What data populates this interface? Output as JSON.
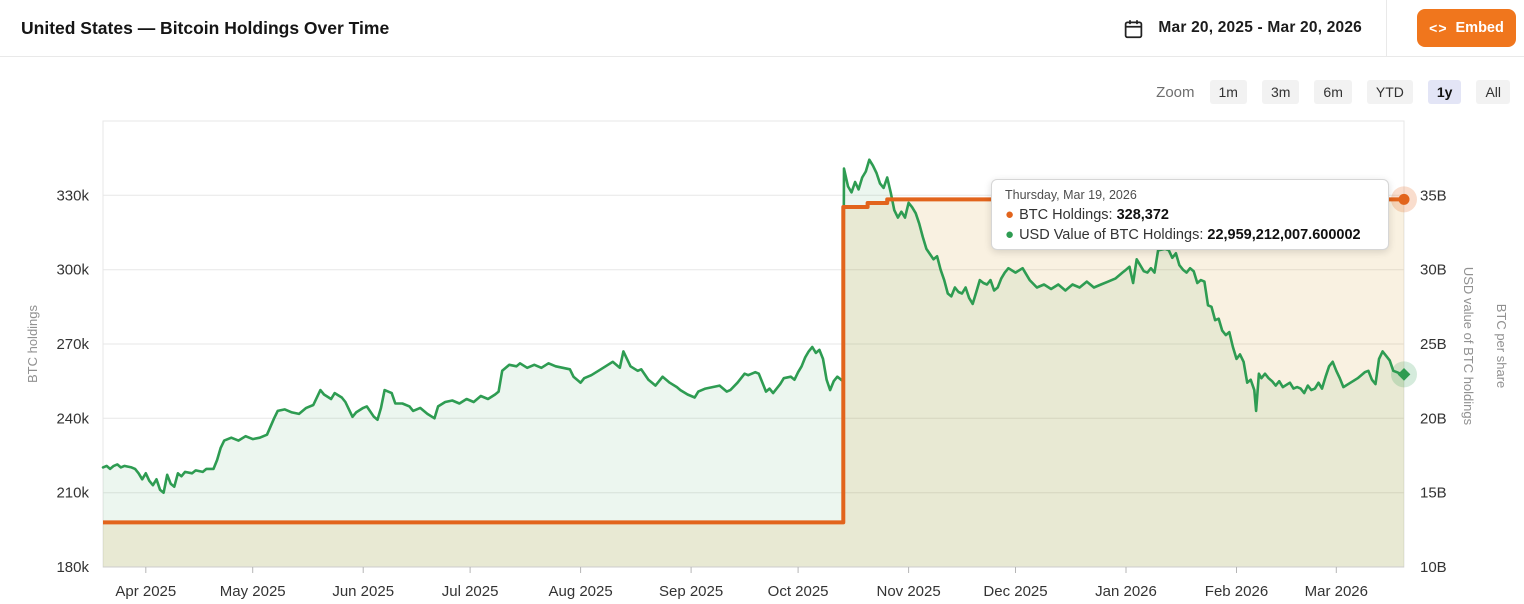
{
  "header": {
    "title": "United States — Bitcoin Holdings Over Time",
    "date_range": "Mar 20, 2025 - Mar 20, 2026",
    "embed_icon": "<>",
    "embed_label": "Embed"
  },
  "toolbar": {
    "zoom_label": "Zoom",
    "buttons": [
      "1m",
      "3m",
      "6m",
      "YTD",
      "1y",
      "All"
    ],
    "selected": "1y"
  },
  "tooltip": {
    "date": "Thursday, Mar 19, 2026",
    "rows": [
      {
        "label": "BTC Holdings: ",
        "value": "328,372",
        "color": "#e2641c"
      },
      {
        "label": "USD Value of BTC Holdings: ",
        "value": "22,959,212,007.600002",
        "color": "#2e9c52"
      }
    ]
  },
  "colors": {
    "accent_orange": "#f0761d",
    "series_btc": "#e2641c",
    "series_usd": "#2e9c52",
    "grid": "#e7e7e7",
    "axis_line": "#cccccc",
    "tick_label": "#333333",
    "axis_title": "#919191",
    "selected_zoom_bg": "#e3e5f6"
  },
  "chart_data": {
    "type": "line",
    "title": "United States — Bitcoin Holdings Over Time",
    "grid": true,
    "legend_position": "none",
    "x_axis": {
      "unit": "days since 2025-03-20",
      "span_days": 365,
      "tick_days": [
        12,
        42,
        73,
        103,
        134,
        165,
        195,
        226,
        256,
        287,
        318,
        346
      ],
      "tick_labels": [
        "Apr 2025",
        "May 2025",
        "Jun 2025",
        "Jul 2025",
        "Aug 2025",
        "Sep 2025",
        "Oct 2025",
        "Nov 2025",
        "Dec 2025",
        "Jan 2026",
        "Feb 2026",
        "Mar 2026"
      ]
    },
    "y_axis_left": {
      "title": "BTC holdings",
      "range": [
        180000,
        360000
      ],
      "tick_values": [
        180000,
        210000,
        240000,
        270000,
        300000,
        330000
      ],
      "tick_labels": [
        "180k",
        "210k",
        "240k",
        "270k",
        "300k",
        "330k"
      ]
    },
    "y_axis_right": {
      "titles": [
        "USD value of BTC holdings",
        "BTC per share"
      ],
      "range": [
        10,
        40
      ],
      "tick_values": [
        10,
        15,
        20,
        25,
        30,
        35
      ],
      "tick_labels": [
        "10B",
        "15B",
        "20B",
        "25B",
        "30B",
        "35B"
      ]
    },
    "series": [
      {
        "name": "BTC Holdings",
        "axis": "left",
        "style": "step",
        "color": "#e2641c",
        "last_point": {
          "date": "Thursday, Mar 19, 2026",
          "value": 328372
        },
        "points": [
          [
            0,
            198012
          ],
          [
            207.6,
            198012
          ],
          [
            207.7,
            325283
          ],
          [
            213.5,
            325283
          ],
          [
            214.5,
            326900
          ],
          [
            219,
            326900
          ],
          [
            220,
            328372
          ],
          [
            365,
            328372
          ]
        ]
      },
      {
        "name": "USD Value of BTC Holdings",
        "axis": "right",
        "style": "line",
        "color": "#2e9c52",
        "unit": "billions USD",
        "last_point": {
          "date": "Thursday, Mar 19, 2026",
          "value": 22.9592120076
        },
        "points": [
          [
            0,
            16.7
          ],
          [
            1,
            16.8
          ],
          [
            2,
            16.6
          ],
          [
            3,
            16.8
          ],
          [
            4,
            16.9
          ],
          [
            5,
            16.7
          ],
          [
            6,
            16.8
          ],
          [
            8,
            16.7
          ],
          [
            9,
            16.6
          ],
          [
            10,
            16.3
          ],
          [
            11,
            15.9
          ],
          [
            12,
            16.3
          ],
          [
            13,
            15.8
          ],
          [
            14,
            15.5
          ],
          [
            15,
            15.9
          ],
          [
            16,
            15.2
          ],
          [
            17,
            15.0
          ],
          [
            18,
            16.2
          ],
          [
            19,
            15.6
          ],
          [
            20,
            15.4
          ],
          [
            21,
            16.3
          ],
          [
            22,
            16.1
          ],
          [
            23,
            16.4
          ],
          [
            25,
            16.3
          ],
          [
            26,
            16.5
          ],
          [
            28,
            16.4
          ],
          [
            29,
            16.6
          ],
          [
            31,
            16.6
          ],
          [
            32,
            17.2
          ],
          [
            33,
            18.0
          ],
          [
            34,
            18.5
          ],
          [
            36,
            18.7
          ],
          [
            38,
            18.5
          ],
          [
            40,
            18.8
          ],
          [
            42,
            18.6
          ],
          [
            44,
            18.7
          ],
          [
            46,
            18.9
          ],
          [
            48,
            20.0
          ],
          [
            49,
            20.5
          ],
          [
            51,
            20.6
          ],
          [
            53,
            20.4
          ],
          [
            55,
            20.3
          ],
          [
            57,
            20.7
          ],
          [
            59,
            20.9
          ],
          [
            61,
            21.9
          ],
          [
            62,
            21.6
          ],
          [
            64,
            21.3
          ],
          [
            65,
            21.7
          ],
          [
            67,
            21.4
          ],
          [
            68,
            21.1
          ],
          [
            70,
            20.1
          ],
          [
            71,
            20.4
          ],
          [
            73,
            20.7
          ],
          [
            74,
            20.8
          ],
          [
            76,
            20.1
          ],
          [
            77,
            19.9
          ],
          [
            78,
            20.7
          ],
          [
            79,
            21.9
          ],
          [
            81,
            21.7
          ],
          [
            82,
            21.0
          ],
          [
            84,
            21.0
          ],
          [
            86,
            20.8
          ],
          [
            87,
            20.5
          ],
          [
            89,
            20.7
          ],
          [
            91,
            20.3
          ],
          [
            93,
            20.0
          ],
          [
            94,
            20.8
          ],
          [
            96,
            21.1
          ],
          [
            98,
            21.2
          ],
          [
            100,
            21.0
          ],
          [
            102,
            21.3
          ],
          [
            104,
            21.1
          ],
          [
            106,
            21.5
          ],
          [
            108,
            21.3
          ],
          [
            110,
            21.6
          ],
          [
            111,
            21.8
          ],
          [
            112,
            23.2
          ],
          [
            114,
            23.6
          ],
          [
            116,
            23.5
          ],
          [
            117,
            23.7
          ],
          [
            119,
            23.4
          ],
          [
            121,
            23.6
          ],
          [
            123,
            23.4
          ],
          [
            125,
            23.7
          ],
          [
            127,
            23.5
          ],
          [
            129,
            23.4
          ],
          [
            131,
            23.3
          ],
          [
            132,
            22.8
          ],
          [
            134,
            22.4
          ],
          [
            135,
            22.7
          ],
          [
            137,
            22.9
          ],
          [
            139,
            23.2
          ],
          [
            141,
            23.5
          ],
          [
            143,
            23.8
          ],
          [
            145,
            23.4
          ],
          [
            146,
            24.5
          ],
          [
            148,
            23.5
          ],
          [
            150,
            23.2
          ],
          [
            151,
            23.3
          ],
          [
            153,
            22.6
          ],
          [
            155,
            22.2
          ],
          [
            157,
            22.8
          ],
          [
            159,
            22.4
          ],
          [
            161,
            22.1
          ],
          [
            162,
            21.9
          ],
          [
            164,
            21.6
          ],
          [
            166,
            21.4
          ],
          [
            167,
            21.8
          ],
          [
            169,
            22.0
          ],
          [
            171,
            22.1
          ],
          [
            173,
            22.2
          ],
          [
            175,
            21.8
          ],
          [
            176,
            21.9
          ],
          [
            178,
            22.4
          ],
          [
            180,
            23.0
          ],
          [
            181,
            22.9
          ],
          [
            183,
            23.1
          ],
          [
            184,
            23.0
          ],
          [
            186,
            21.8
          ],
          [
            187,
            22.0
          ],
          [
            188,
            21.7
          ],
          [
            190,
            22.3
          ],
          [
            191,
            22.7
          ],
          [
            193,
            22.8
          ],
          [
            194,
            22.6
          ],
          [
            195,
            23.1
          ],
          [
            196,
            23.5
          ],
          [
            197,
            24.1
          ],
          [
            198,
            24.5
          ],
          [
            199,
            24.8
          ],
          [
            200,
            24.4
          ],
          [
            201,
            24.6
          ],
          [
            202,
            24.0
          ],
          [
            203,
            22.6
          ],
          [
            204,
            21.9
          ],
          [
            205,
            22.5
          ],
          [
            206,
            22.8
          ],
          [
            207.6,
            22.5
          ],
          [
            207.9,
            36.8
          ],
          [
            209,
            35.6
          ],
          [
            210,
            35.2
          ],
          [
            211,
            35.9
          ],
          [
            212,
            35.4
          ],
          [
            213,
            36.2
          ],
          [
            214,
            36.6
          ],
          [
            215,
            37.4
          ],
          [
            216,
            37.0
          ],
          [
            217,
            36.5
          ],
          [
            218,
            35.8
          ],
          [
            219,
            35.5
          ],
          [
            220,
            36.2
          ],
          [
            221,
            35.2
          ],
          [
            222,
            34.0
          ],
          [
            223,
            33.5
          ],
          [
            224,
            33.9
          ],
          [
            225,
            33.5
          ],
          [
            226,
            34.5
          ],
          [
            227,
            34.2
          ],
          [
            228,
            33.8
          ],
          [
            229,
            33.1
          ],
          [
            230,
            32.2
          ],
          [
            231,
            31.4
          ],
          [
            233,
            30.7
          ],
          [
            234,
            30.9
          ],
          [
            235,
            30.0
          ],
          [
            236,
            29.3
          ],
          [
            237,
            28.4
          ],
          [
            238,
            28.2
          ],
          [
            239,
            28.8
          ],
          [
            240,
            28.5
          ],
          [
            241,
            28.4
          ],
          [
            242,
            28.8
          ],
          [
            243,
            28.1
          ],
          [
            244,
            27.7
          ],
          [
            245,
            28.5
          ],
          [
            246,
            29.3
          ],
          [
            247,
            29.1
          ],
          [
            248,
            29.0
          ],
          [
            249,
            29.3
          ],
          [
            250,
            28.6
          ],
          [
            251,
            28.8
          ],
          [
            252,
            29.4
          ],
          [
            253,
            29.8
          ],
          [
            254,
            30.1
          ],
          [
            256,
            29.8
          ],
          [
            258,
            30.1
          ],
          [
            260,
            29.3
          ],
          [
            262,
            28.8
          ],
          [
            264,
            29.0
          ],
          [
            266,
            28.7
          ],
          [
            268,
            29.0
          ],
          [
            270,
            28.6
          ],
          [
            272,
            29.0
          ],
          [
            274,
            28.8
          ],
          [
            276,
            29.2
          ],
          [
            278,
            28.8
          ],
          [
            280,
            29.0
          ],
          [
            282,
            29.2
          ],
          [
            284,
            29.4
          ],
          [
            286,
            29.8
          ],
          [
            287,
            30.0
          ],
          [
            288,
            30.2
          ],
          [
            289,
            29.1
          ],
          [
            290,
            30.7
          ],
          [
            291,
            30.3
          ],
          [
            292,
            29.9
          ],
          [
            293,
            29.8
          ],
          [
            294,
            30.1
          ],
          [
            295,
            29.8
          ],
          [
            296,
            31.3
          ],
          [
            298,
            31.4
          ],
          [
            299,
            31.3
          ],
          [
            300,
            30.8
          ],
          [
            301,
            31.1
          ],
          [
            302,
            30.3
          ],
          [
            303,
            30.0
          ],
          [
            304,
            29.8
          ],
          [
            305,
            30.1
          ],
          [
            306,
            29.9
          ],
          [
            307,
            29.1
          ],
          [
            308,
            29.3
          ],
          [
            309,
            29.2
          ],
          [
            310,
            27.6
          ],
          [
            311,
            27.5
          ],
          [
            312,
            26.6
          ],
          [
            313,
            26.7
          ],
          [
            314,
            25.9
          ],
          [
            315,
            25.6
          ],
          [
            316,
            25.8
          ],
          [
            317,
            24.8
          ],
          [
            318,
            24.0
          ],
          [
            319,
            24.3
          ],
          [
            320,
            23.8
          ],
          [
            321,
            22.4
          ],
          [
            322,
            22.6
          ],
          [
            323,
            21.9
          ],
          [
            323.5,
            20.5
          ],
          [
            324.3,
            23.0
          ],
          [
            325,
            22.7
          ],
          [
            326,
            23.0
          ],
          [
            327,
            22.7
          ],
          [
            328,
            22.5
          ],
          [
            329,
            22.2
          ],
          [
            330,
            22.5
          ],
          [
            331,
            22.1
          ],
          [
            333,
            22.4
          ],
          [
            334,
            22.0
          ],
          [
            335,
            22.1
          ],
          [
            336,
            22.0
          ],
          [
            337,
            21.7
          ],
          [
            338,
            22.2
          ],
          [
            339,
            21.9
          ],
          [
            340,
            22.0
          ],
          [
            341,
            22.4
          ],
          [
            342,
            22.0
          ],
          [
            343,
            22.8
          ],
          [
            344,
            23.5
          ],
          [
            345,
            23.8
          ],
          [
            346,
            23.2
          ],
          [
            347,
            22.7
          ],
          [
            348,
            22.1
          ],
          [
            350,
            22.4
          ],
          [
            352,
            22.7
          ],
          [
            354,
            23.1
          ],
          [
            355,
            23.2
          ],
          [
            356,
            22.6
          ],
          [
            357,
            22.3
          ],
          [
            358,
            24.0
          ],
          [
            359,
            24.5
          ],
          [
            360,
            24.2
          ],
          [
            361,
            23.9
          ],
          [
            362,
            23.2
          ],
          [
            363,
            23.1
          ],
          [
            364,
            23.0
          ],
          [
            365,
            22.959
          ]
        ]
      }
    ]
  }
}
